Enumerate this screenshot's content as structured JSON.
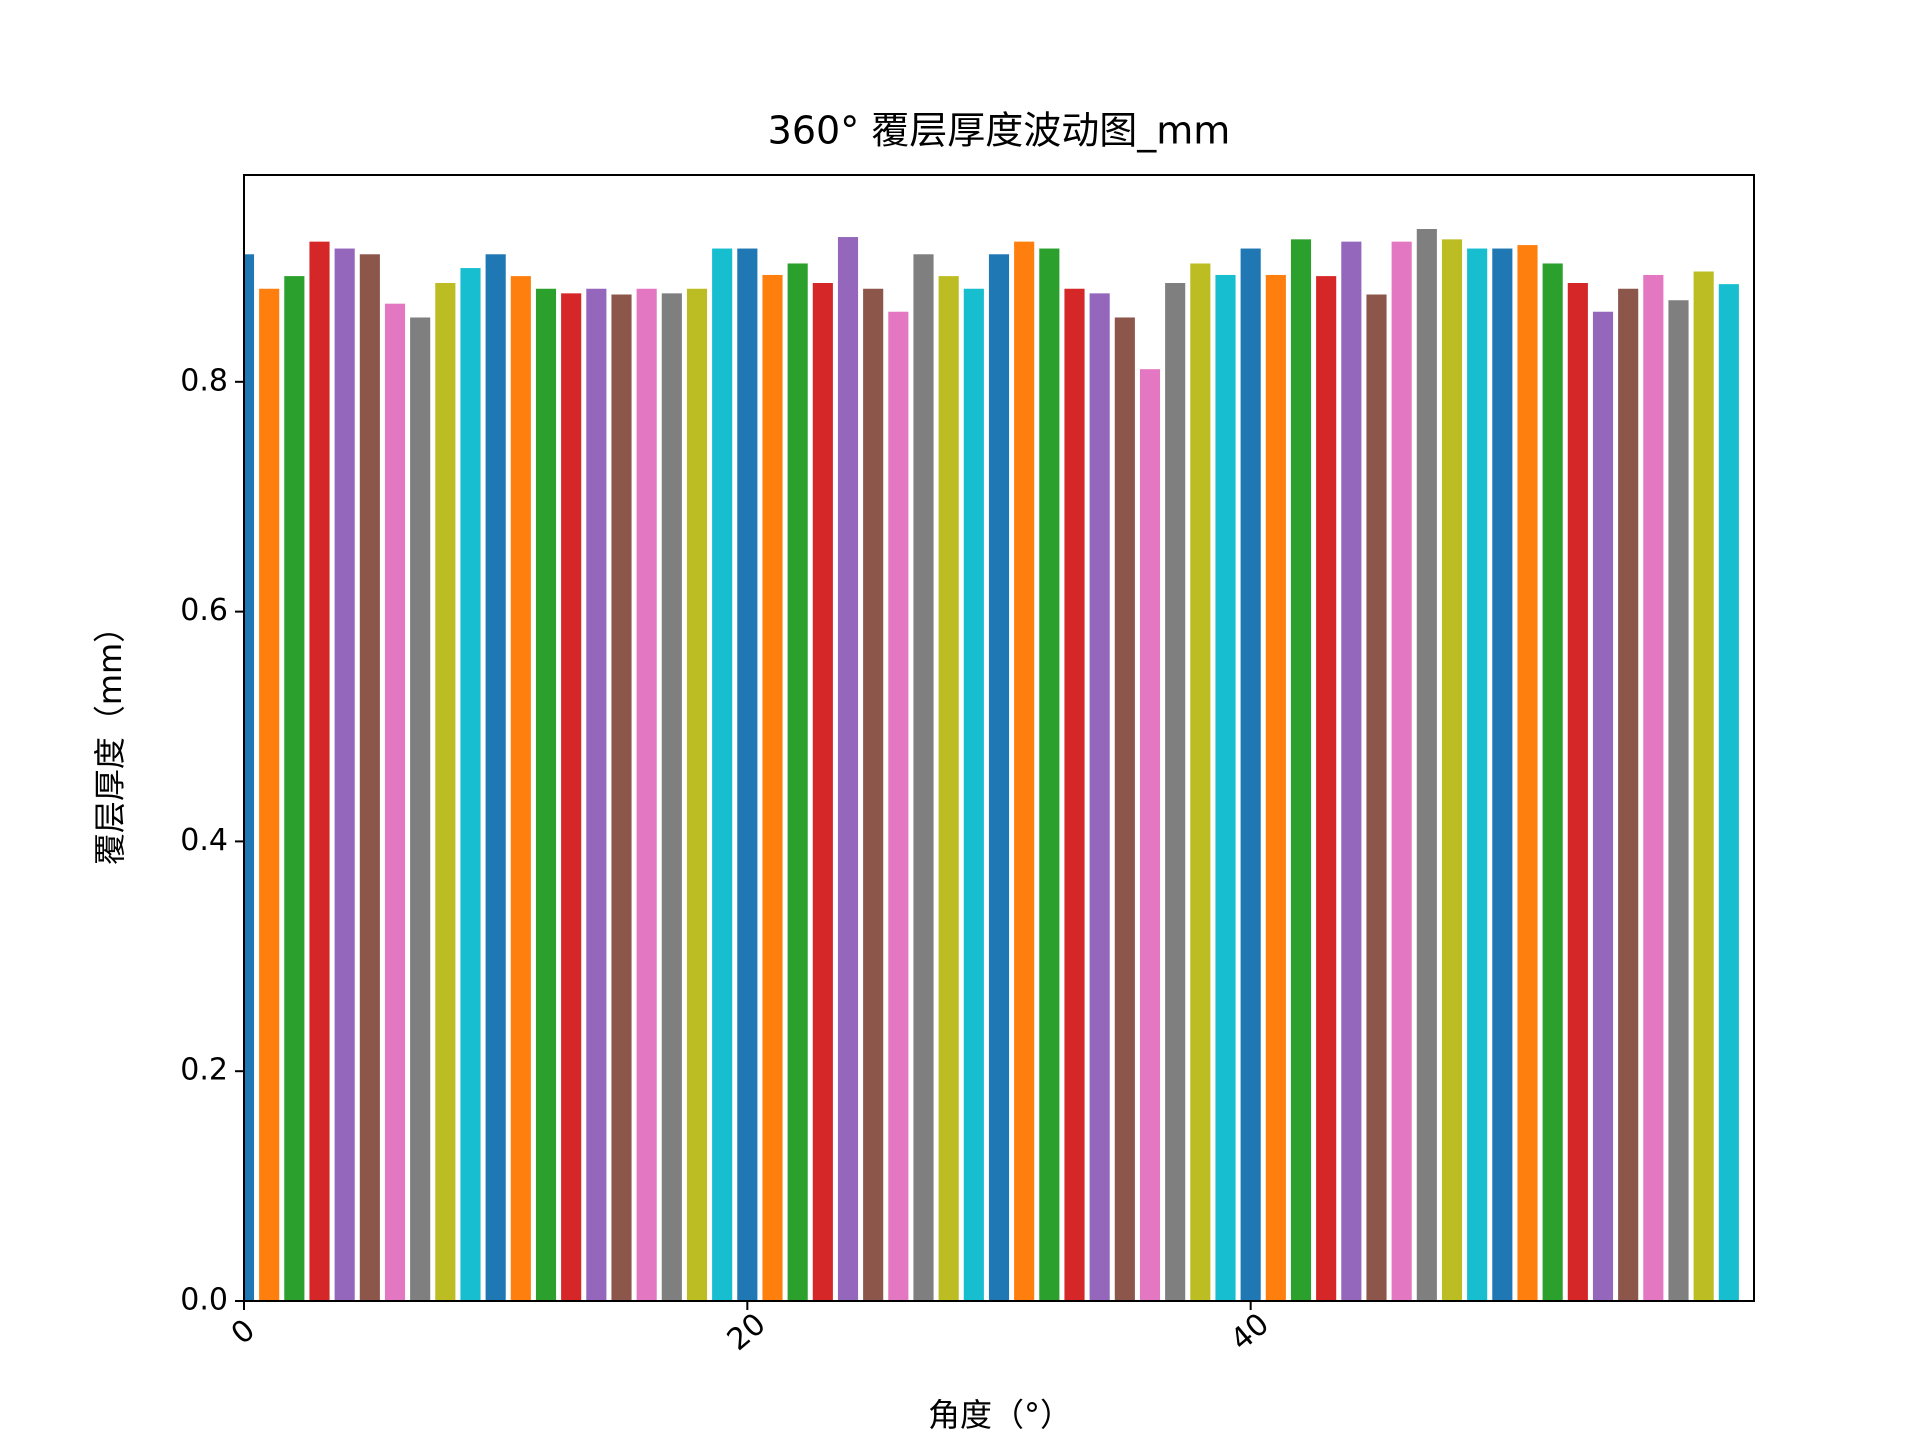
{
  "chart_data": {
    "type": "bar",
    "title": "360° 覆层厚度波动图_mm",
    "x_label": "角度（°）",
    "y_label": "覆层厚度（mm）",
    "x": [
      0,
      1,
      2,
      3,
      4,
      5,
      6,
      7,
      8,
      9,
      10,
      11,
      12,
      13,
      14,
      15,
      16,
      17,
      18,
      19,
      20,
      21,
      22,
      23,
      24,
      25,
      26,
      27,
      28,
      29,
      30,
      31,
      32,
      33,
      34,
      35,
      36,
      37,
      38,
      39,
      40,
      41,
      42,
      43,
      44,
      45,
      46,
      47,
      48,
      49,
      50,
      51,
      52,
      53,
      54,
      55,
      56,
      57,
      58,
      59
    ],
    "values": [
      0.911,
      0.881,
      0.892,
      0.922,
      0.916,
      0.911,
      0.868,
      0.856,
      0.886,
      0.899,
      0.911,
      0.892,
      0.881,
      0.877,
      0.881,
      0.876,
      0.881,
      0.877,
      0.881,
      0.916,
      0.916,
      0.893,
      0.903,
      0.886,
      0.926,
      0.881,
      0.861,
      0.911,
      0.892,
      0.881,
      0.911,
      0.922,
      0.916,
      0.881,
      0.877,
      0.856,
      0.811,
      0.886,
      0.903,
      0.893,
      0.916,
      0.893,
      0.924,
      0.892,
      0.922,
      0.876,
      0.922,
      0.933,
      0.924,
      0.916,
      0.916,
      0.919,
      0.903,
      0.886,
      0.861,
      0.881,
      0.893,
      0.871,
      0.896,
      0.885
    ],
    "colors": [
      "#1f77b4",
      "#ff7f0e",
      "#2ca02c",
      "#d62728",
      "#9467bd",
      "#8c564b",
      "#e377c2",
      "#7f7f7f",
      "#bcbd22",
      "#17becf"
    ],
    "bar_width": 0.8,
    "xlim": [
      0,
      60
    ],
    "xticks": [
      0,
      20,
      40
    ],
    "ylim": [
      0,
      0.98
    ],
    "yticks": [
      {
        "value": 0,
        "label": "0.0"
      },
      0.2,
      0.4,
      0.6,
      0.8
    ]
  }
}
